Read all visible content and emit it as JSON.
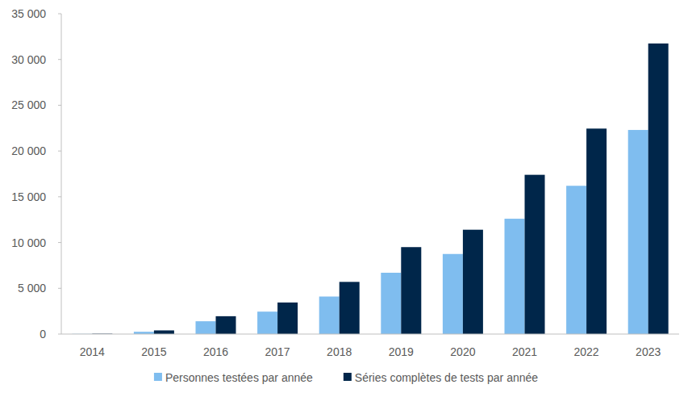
{
  "chart_data": {
    "type": "bar",
    "categories": [
      "2014",
      "2015",
      "2016",
      "2017",
      "2018",
      "2019",
      "2020",
      "2021",
      "2022",
      "2023"
    ],
    "series": [
      {
        "name": "Personnes testées par année",
        "color": "#7fbdef",
        "values": [
          20,
          250,
          1400,
          2450,
          4100,
          6700,
          8750,
          12600,
          16200,
          22300
        ]
      },
      {
        "name": "Séries complètes de tests par année",
        "color": "#00264a",
        "values": [
          40,
          400,
          1950,
          3450,
          5700,
          9500,
          11400,
          17400,
          22450,
          31750
        ]
      }
    ],
    "ylim": [
      0,
      35000
    ],
    "yticks": [
      0,
      {
        "value": 5000,
        "label": "5 000"
      },
      {
        "value": 10000,
        "label": "10 000"
      },
      {
        "value": 15000,
        "label": "15 000"
      },
      {
        "value": 20000,
        "label": "20 000"
      },
      {
        "value": 25000,
        "label": "25 000"
      },
      {
        "value": 30000,
        "label": "30 000"
      },
      {
        "value": 35000,
        "label": "35 000"
      }
    ],
    "grid": false,
    "legend": "bottom"
  }
}
